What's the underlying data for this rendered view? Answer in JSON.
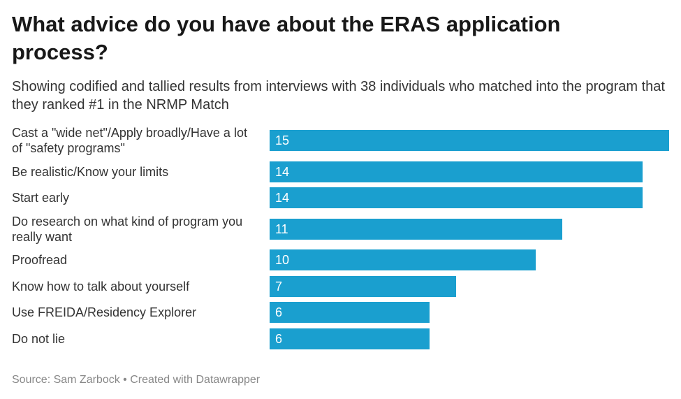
{
  "chart_data": {
    "type": "bar",
    "orientation": "horizontal",
    "title": "What advice do you have about the ERAS application process?",
    "subtitle": "Showing codified and tallied results from interviews with 38 individuals who matched into the program that they ranked #1 in the NRMP Match",
    "categories": [
      "Cast a \"wide net\"/Apply broadly/Have a lot of \"safety programs\"",
      "Be realistic/Know your limits",
      "Start early",
      "Do research on what kind of program you really want",
      "Proofread",
      "Know how to talk about yourself",
      "Use FREIDA/Residency Explorer",
      "Do not lie"
    ],
    "values": [
      15,
      14,
      14,
      11,
      10,
      7,
      6,
      6
    ],
    "color": "#1a9fcf",
    "source": "Source: Sam Zarbock • Created with Datawrapper"
  }
}
